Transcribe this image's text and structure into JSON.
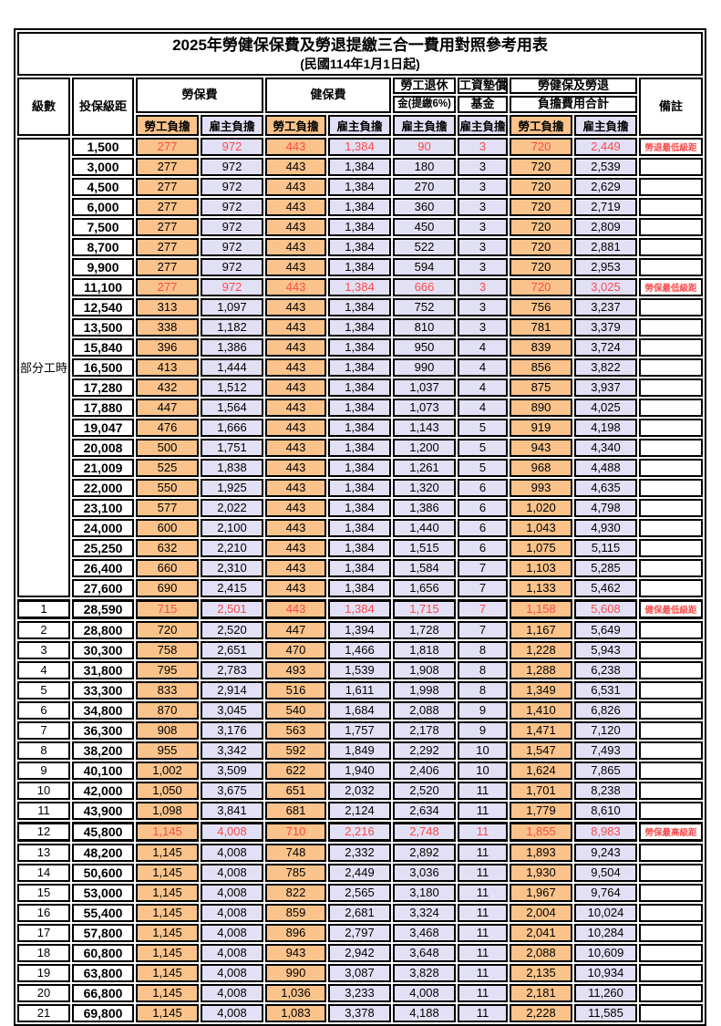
{
  "title": "2025年勞健保保費及勞退提繳三合一費用對照參考用表",
  "subtitle": "(民國114年1月1日起)",
  "header": {
    "level": "級數",
    "bracket": "投保級距",
    "labor": "勞保費",
    "health": "健保費",
    "pension1": "勞工退休",
    "pension2": "金(提繳6%)",
    "fund1": "工資墊償",
    "fund2": "基金",
    "total1": "勞健保及勞退",
    "total2": "負擔費用合計",
    "remarks": "備註",
    "employee": "勞工負擔",
    "employer": "雇主負擔"
  },
  "part_time": {
    "label": "部分工時",
    "rowspan": 23
  },
  "colors": {
    "employee_column_bg": "#F9C38B",
    "employer_column_bg": "#E2E0F4",
    "highlight_text": "#FB4B4B",
    "border": "#000000"
  },
  "rows": [
    {
      "level": "",
      "bracket": "1,500",
      "values": [
        "277",
        "972",
        "443",
        "1,384",
        "90",
        "3",
        "720",
        "2,449"
      ],
      "note": "勞退最低級距",
      "highlight": true,
      "thick": false
    },
    {
      "level": "",
      "bracket": "3,000",
      "values": [
        "277",
        "972",
        "443",
        "1,384",
        "180",
        "3",
        "720",
        "2,539"
      ],
      "note": "",
      "highlight": false,
      "thick": false
    },
    {
      "level": "",
      "bracket": "4,500",
      "values": [
        "277",
        "972",
        "443",
        "1,384",
        "270",
        "3",
        "720",
        "2,629"
      ],
      "note": "",
      "highlight": false,
      "thick": false
    },
    {
      "level": "",
      "bracket": "6,000",
      "values": [
        "277",
        "972",
        "443",
        "1,384",
        "360",
        "3",
        "720",
        "2,719"
      ],
      "note": "",
      "highlight": false,
      "thick": false
    },
    {
      "level": "",
      "bracket": "7,500",
      "values": [
        "277",
        "972",
        "443",
        "1,384",
        "450",
        "3",
        "720",
        "2,809"
      ],
      "note": "",
      "highlight": false,
      "thick": false
    },
    {
      "level": "",
      "bracket": "8,700",
      "values": [
        "277",
        "972",
        "443",
        "1,384",
        "522",
        "3",
        "720",
        "2,881"
      ],
      "note": "",
      "highlight": false,
      "thick": false
    },
    {
      "level": "",
      "bracket": "9,900",
      "values": [
        "277",
        "972",
        "443",
        "1,384",
        "594",
        "3",
        "720",
        "2,953"
      ],
      "note": "",
      "highlight": false,
      "thick": false
    },
    {
      "level": "",
      "bracket": "11,100",
      "values": [
        "277",
        "972",
        "443",
        "1,384",
        "666",
        "3",
        "720",
        "3,025"
      ],
      "note": "勞保最低級距",
      "highlight": true,
      "thick": false
    },
    {
      "level": "",
      "bracket": "12,540",
      "values": [
        "313",
        "1,097",
        "443",
        "1,384",
        "752",
        "3",
        "756",
        "3,237"
      ],
      "note": "",
      "highlight": false,
      "thick": false
    },
    {
      "level": "",
      "bracket": "13,500",
      "values": [
        "338",
        "1,182",
        "443",
        "1,384",
        "810",
        "3",
        "781",
        "3,379"
      ],
      "note": "",
      "highlight": false,
      "thick": false
    },
    {
      "level": "",
      "bracket": "15,840",
      "values": [
        "396",
        "1,386",
        "443",
        "1,384",
        "950",
        "4",
        "839",
        "3,724"
      ],
      "note": "",
      "highlight": false,
      "thick": false
    },
    {
      "level": "",
      "bracket": "16,500",
      "values": [
        "413",
        "1,444",
        "443",
        "1,384",
        "990",
        "4",
        "856",
        "3,822"
      ],
      "note": "",
      "highlight": false,
      "thick": false
    },
    {
      "level": "",
      "bracket": "17,280",
      "values": [
        "432",
        "1,512",
        "443",
        "1,384",
        "1,037",
        "4",
        "875",
        "3,937"
      ],
      "note": "",
      "highlight": false,
      "thick": false
    },
    {
      "level": "",
      "bracket": "17,880",
      "values": [
        "447",
        "1,564",
        "443",
        "1,384",
        "1,073",
        "4",
        "890",
        "4,025"
      ],
      "note": "",
      "highlight": false,
      "thick": false
    },
    {
      "level": "",
      "bracket": "19,047",
      "values": [
        "476",
        "1,666",
        "443",
        "1,384",
        "1,143",
        "5",
        "919",
        "4,198"
      ],
      "note": "",
      "highlight": false,
      "thick": false
    },
    {
      "level": "",
      "bracket": "20,008",
      "values": [
        "500",
        "1,751",
        "443",
        "1,384",
        "1,200",
        "5",
        "943",
        "4,340"
      ],
      "note": "",
      "highlight": false,
      "thick": false
    },
    {
      "level": "",
      "bracket": "21,009",
      "values": [
        "525",
        "1,838",
        "443",
        "1,384",
        "1,261",
        "5",
        "968",
        "4,488"
      ],
      "note": "",
      "highlight": false,
      "thick": false
    },
    {
      "level": "",
      "bracket": "22,000",
      "values": [
        "550",
        "1,925",
        "443",
        "1,384",
        "1,320",
        "6",
        "993",
        "4,635"
      ],
      "note": "",
      "highlight": false,
      "thick": false
    },
    {
      "level": "",
      "bracket": "23,100",
      "values": [
        "577",
        "2,022",
        "443",
        "1,384",
        "1,386",
        "6",
        "1,020",
        "4,798"
      ],
      "note": "",
      "highlight": false,
      "thick": false
    },
    {
      "level": "",
      "bracket": "24,000",
      "values": [
        "600",
        "2,100",
        "443",
        "1,384",
        "1,440",
        "6",
        "1,043",
        "4,930"
      ],
      "note": "",
      "highlight": false,
      "thick": false
    },
    {
      "level": "",
      "bracket": "25,250",
      "values": [
        "632",
        "2,210",
        "443",
        "1,384",
        "1,515",
        "6",
        "1,075",
        "5,115"
      ],
      "note": "",
      "highlight": false,
      "thick": false
    },
    {
      "level": "",
      "bracket": "26,400",
      "values": [
        "660",
        "2,310",
        "443",
        "1,384",
        "1,584",
        "7",
        "1,103",
        "5,285"
      ],
      "note": "",
      "highlight": false,
      "thick": false
    },
    {
      "level": "",
      "bracket": "27,600",
      "values": [
        "690",
        "2,415",
        "443",
        "1,384",
        "1,656",
        "7",
        "1,133",
        "5,462"
      ],
      "note": "",
      "highlight": false,
      "thick": false
    },
    {
      "level": "1",
      "bracket": "28,590",
      "values": [
        "715",
        "2,501",
        "443",
        "1,384",
        "1,715",
        "7",
        "1,158",
        "5,608"
      ],
      "note": "健保最低級距",
      "highlight": true,
      "thick": true
    },
    {
      "level": "2",
      "bracket": "28,800",
      "values": [
        "720",
        "2,520",
        "447",
        "1,394",
        "1,728",
        "7",
        "1,167",
        "5,649"
      ],
      "note": "",
      "highlight": false,
      "thick": false
    },
    {
      "level": "3",
      "bracket": "30,300",
      "values": [
        "758",
        "2,651",
        "470",
        "1,466",
        "1,818",
        "8",
        "1,228",
        "5,943"
      ],
      "note": "",
      "highlight": false,
      "thick": false
    },
    {
      "level": "4",
      "bracket": "31,800",
      "values": [
        "795",
        "2,783",
        "493",
        "1,539",
        "1,908",
        "8",
        "1,288",
        "6,238"
      ],
      "note": "",
      "highlight": false,
      "thick": false
    },
    {
      "level": "5",
      "bracket": "33,300",
      "values": [
        "833",
        "2,914",
        "516",
        "1,611",
        "1,998",
        "8",
        "1,349",
        "6,531"
      ],
      "note": "",
      "highlight": false,
      "thick": false
    },
    {
      "level": "6",
      "bracket": "34,800",
      "values": [
        "870",
        "3,045",
        "540",
        "1,684",
        "2,088",
        "9",
        "1,410",
        "6,826"
      ],
      "note": "",
      "highlight": false,
      "thick": false
    },
    {
      "level": "7",
      "bracket": "36,300",
      "values": [
        "908",
        "3,176",
        "563",
        "1,757",
        "2,178",
        "9",
        "1,471",
        "7,120"
      ],
      "note": "",
      "highlight": false,
      "thick": false
    },
    {
      "level": "8",
      "bracket": "38,200",
      "values": [
        "955",
        "3,342",
        "592",
        "1,849",
        "2,292",
        "10",
        "1,547",
        "7,493"
      ],
      "note": "",
      "highlight": false,
      "thick": false
    },
    {
      "level": "9",
      "bracket": "40,100",
      "values": [
        "1,002",
        "3,509",
        "622",
        "1,940",
        "2,406",
        "10",
        "1,624",
        "7,865"
      ],
      "note": "",
      "highlight": false,
      "thick": false
    },
    {
      "level": "10",
      "bracket": "42,000",
      "values": [
        "1,050",
        "3,675",
        "651",
        "2,032",
        "2,520",
        "11",
        "1,701",
        "8,238"
      ],
      "note": "",
      "highlight": false,
      "thick": false
    },
    {
      "level": "11",
      "bracket": "43,900",
      "values": [
        "1,098",
        "3,841",
        "681",
        "2,124",
        "2,634",
        "11",
        "1,779",
        "8,610"
      ],
      "note": "",
      "highlight": false,
      "thick": false
    },
    {
      "level": "12",
      "bracket": "45,800",
      "values": [
        "1,145",
        "4,008",
        "710",
        "2,216",
        "2,748",
        "11",
        "1,855",
        "8,983"
      ],
      "note": "勞保最高級距",
      "highlight": true,
      "thick": true
    },
    {
      "level": "13",
      "bracket": "48,200",
      "values": [
        "1,145",
        "4,008",
        "748",
        "2,332",
        "2,892",
        "11",
        "1,893",
        "9,243"
      ],
      "note": "",
      "highlight": false,
      "thick": false
    },
    {
      "level": "14",
      "bracket": "50,600",
      "values": [
        "1,145",
        "4,008",
        "785",
        "2,449",
        "3,036",
        "11",
        "1,930",
        "9,504"
      ],
      "note": "",
      "highlight": false,
      "thick": false
    },
    {
      "level": "15",
      "bracket": "53,000",
      "values": [
        "1,145",
        "4,008",
        "822",
        "2,565",
        "3,180",
        "11",
        "1,967",
        "9,764"
      ],
      "note": "",
      "highlight": false,
      "thick": false
    },
    {
      "level": "16",
      "bracket": "55,400",
      "values": [
        "1,145",
        "4,008",
        "859",
        "2,681",
        "3,324",
        "11",
        "2,004",
        "10,024"
      ],
      "note": "",
      "highlight": false,
      "thick": false
    },
    {
      "level": "17",
      "bracket": "57,800",
      "values": [
        "1,145",
        "4,008",
        "896",
        "2,797",
        "3,468",
        "11",
        "2,041",
        "10,284"
      ],
      "note": "",
      "highlight": false,
      "thick": false
    },
    {
      "level": "18",
      "bracket": "60,800",
      "values": [
        "1,145",
        "4,008",
        "943",
        "2,942",
        "3,648",
        "11",
        "2,088",
        "10,609"
      ],
      "note": "",
      "highlight": false,
      "thick": false
    },
    {
      "level": "19",
      "bracket": "63,800",
      "values": [
        "1,145",
        "4,008",
        "990",
        "3,087",
        "3,828",
        "11",
        "2,135",
        "10,934"
      ],
      "note": "",
      "highlight": false,
      "thick": false
    },
    {
      "level": "20",
      "bracket": "66,800",
      "values": [
        "1,145",
        "4,008",
        "1,036",
        "3,233",
        "4,008",
        "11",
        "2,181",
        "11,260"
      ],
      "note": "",
      "highlight": false,
      "thick": false
    },
    {
      "level": "21",
      "bracket": "69,800",
      "values": [
        "1,145",
        "4,008",
        "1,083",
        "3,378",
        "4,188",
        "11",
        "2,228",
        "11,585"
      ],
      "note": "",
      "highlight": false,
      "thick": false
    }
  ]
}
